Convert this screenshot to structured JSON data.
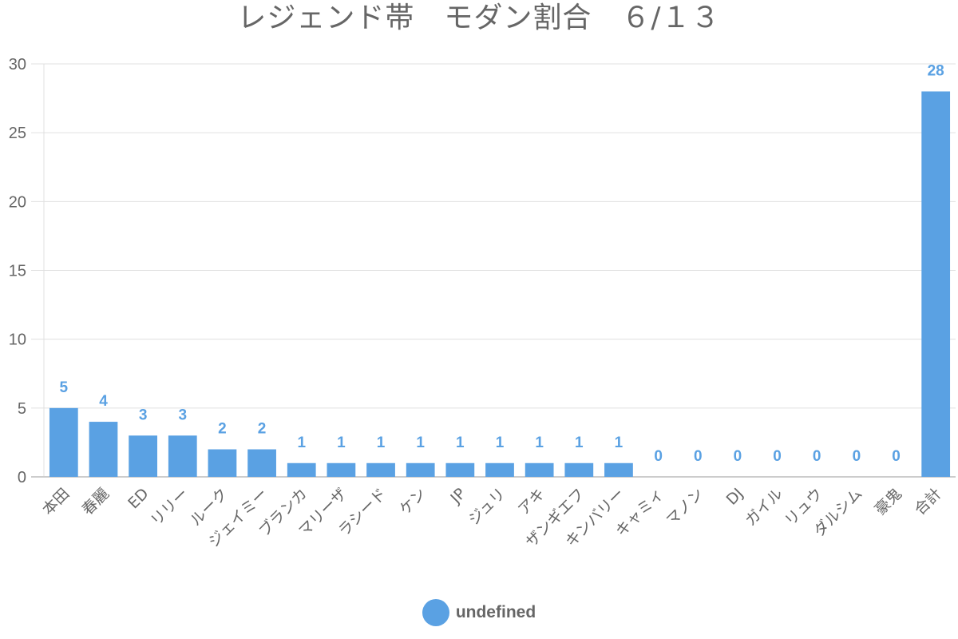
{
  "chart_data": {
    "type": "bar",
    "title": "レジェンド帯　モダン割合　６/１３",
    "xlabel": "",
    "ylabel": "",
    "ylim": [
      0,
      30
    ],
    "yticks": [
      0,
      5,
      10,
      15,
      20,
      25,
      30
    ],
    "grid": true,
    "legend_position": "bottom",
    "categories": [
      "本田",
      "春麗",
      "ED",
      "リリー",
      "ルーク",
      "ジェイミー",
      "ブランカ",
      "マリーザ",
      "ラシード",
      "ケン",
      "JP",
      "ジュリ",
      "アキ",
      "ザンギエフ",
      "キンバリー",
      "キャミィ",
      "マノン",
      "DJ",
      "ガイル",
      "リュウ",
      "ダルシム",
      "豪鬼",
      "合計"
    ],
    "series": [
      {
        "name": "undefined",
        "color": "#5aa1e3",
        "values": [
          5,
          4,
          3,
          3,
          2,
          2,
          1,
          1,
          1,
          1,
          1,
          1,
          1,
          1,
          1,
          0,
          0,
          0,
          0,
          0,
          0,
          0,
          28
        ]
      }
    ],
    "data_labels": true
  },
  "legend": {
    "label": "undefined"
  },
  "colors": {
    "bar": "#5aa1e3",
    "grid": "#e0e0e0",
    "axis": "#cccccc",
    "text": "#666666"
  }
}
